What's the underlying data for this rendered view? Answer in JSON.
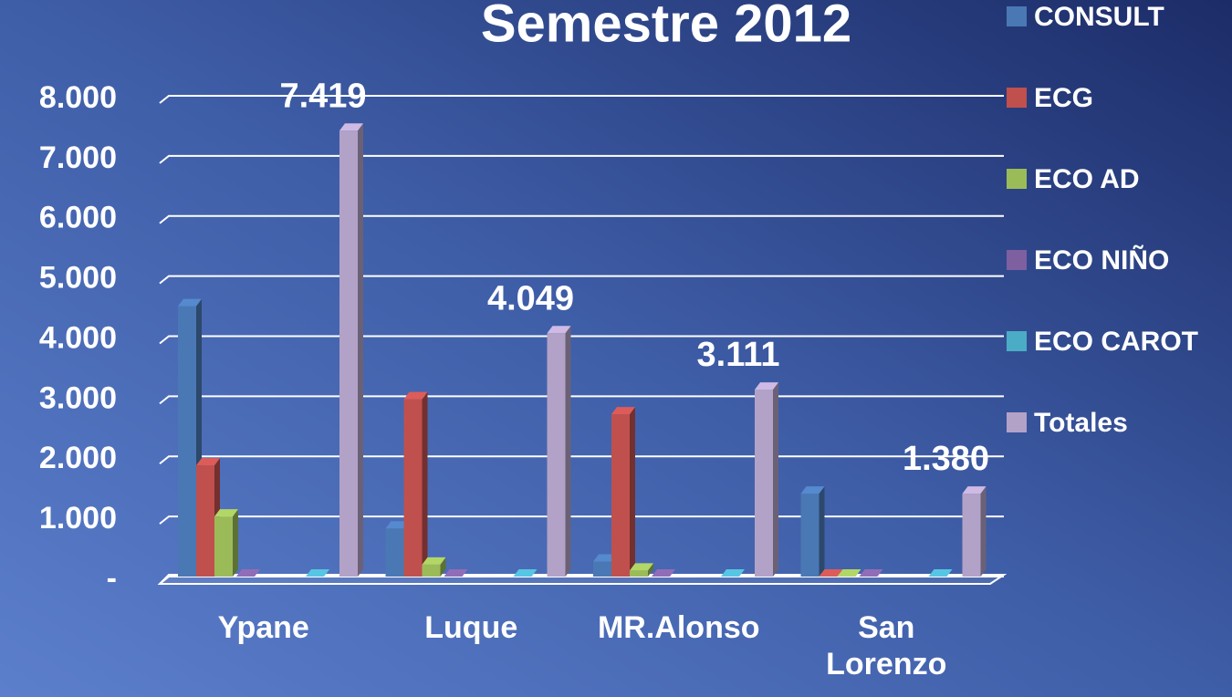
{
  "chart_data": {
    "type": "bar3d",
    "title": "Semestre 2012",
    "categories": [
      "Ypane",
      "Luque",
      "MR.Alonso",
      "San Lorenzo"
    ],
    "series": [
      {
        "name": "CONSULT",
        "color": "#4a78b4",
        "values": [
          4500,
          800,
          250,
          1380
        ]
      },
      {
        "name": "ECG",
        "color": "#c0504d",
        "values": [
          1850,
          2950,
          2700,
          0
        ]
      },
      {
        "name": "ECO AD",
        "color": "#9bbb59",
        "values": [
          1000,
          200,
          100,
          0
        ]
      },
      {
        "name": "ECO NIÑO",
        "color": "#7e5fa0",
        "values": [
          0,
          0,
          0,
          0
        ]
      },
      {
        "name": "ECO CAROT",
        "color": "#4bacc6",
        "values": [
          0,
          0,
          0,
          0
        ]
      },
      {
        "name": "Totales",
        "color": "#b3a2c7",
        "values": [
          7419,
          4049,
          3111,
          1380
        ],
        "value_labels": [
          "7.419",
          "4.049",
          "3.111",
          "1.380"
        ]
      }
    ],
    "ylim": [
      0,
      8000
    ],
    "yticks": [
      {
        "value": 0,
        "label": "-"
      },
      {
        "value": 1000,
        "label": "1.000"
      },
      {
        "value": 2000,
        "label": "2.000"
      },
      {
        "value": 3000,
        "label": "3.000"
      },
      {
        "value": 4000,
        "label": "4.000"
      },
      {
        "value": 5000,
        "label": "5.000"
      },
      {
        "value": 6000,
        "label": "6.000"
      },
      {
        "value": 7000,
        "label": "7.000"
      },
      {
        "value": 8000,
        "label": "8.000"
      }
    ],
    "grid": true,
    "legend": "right"
  }
}
